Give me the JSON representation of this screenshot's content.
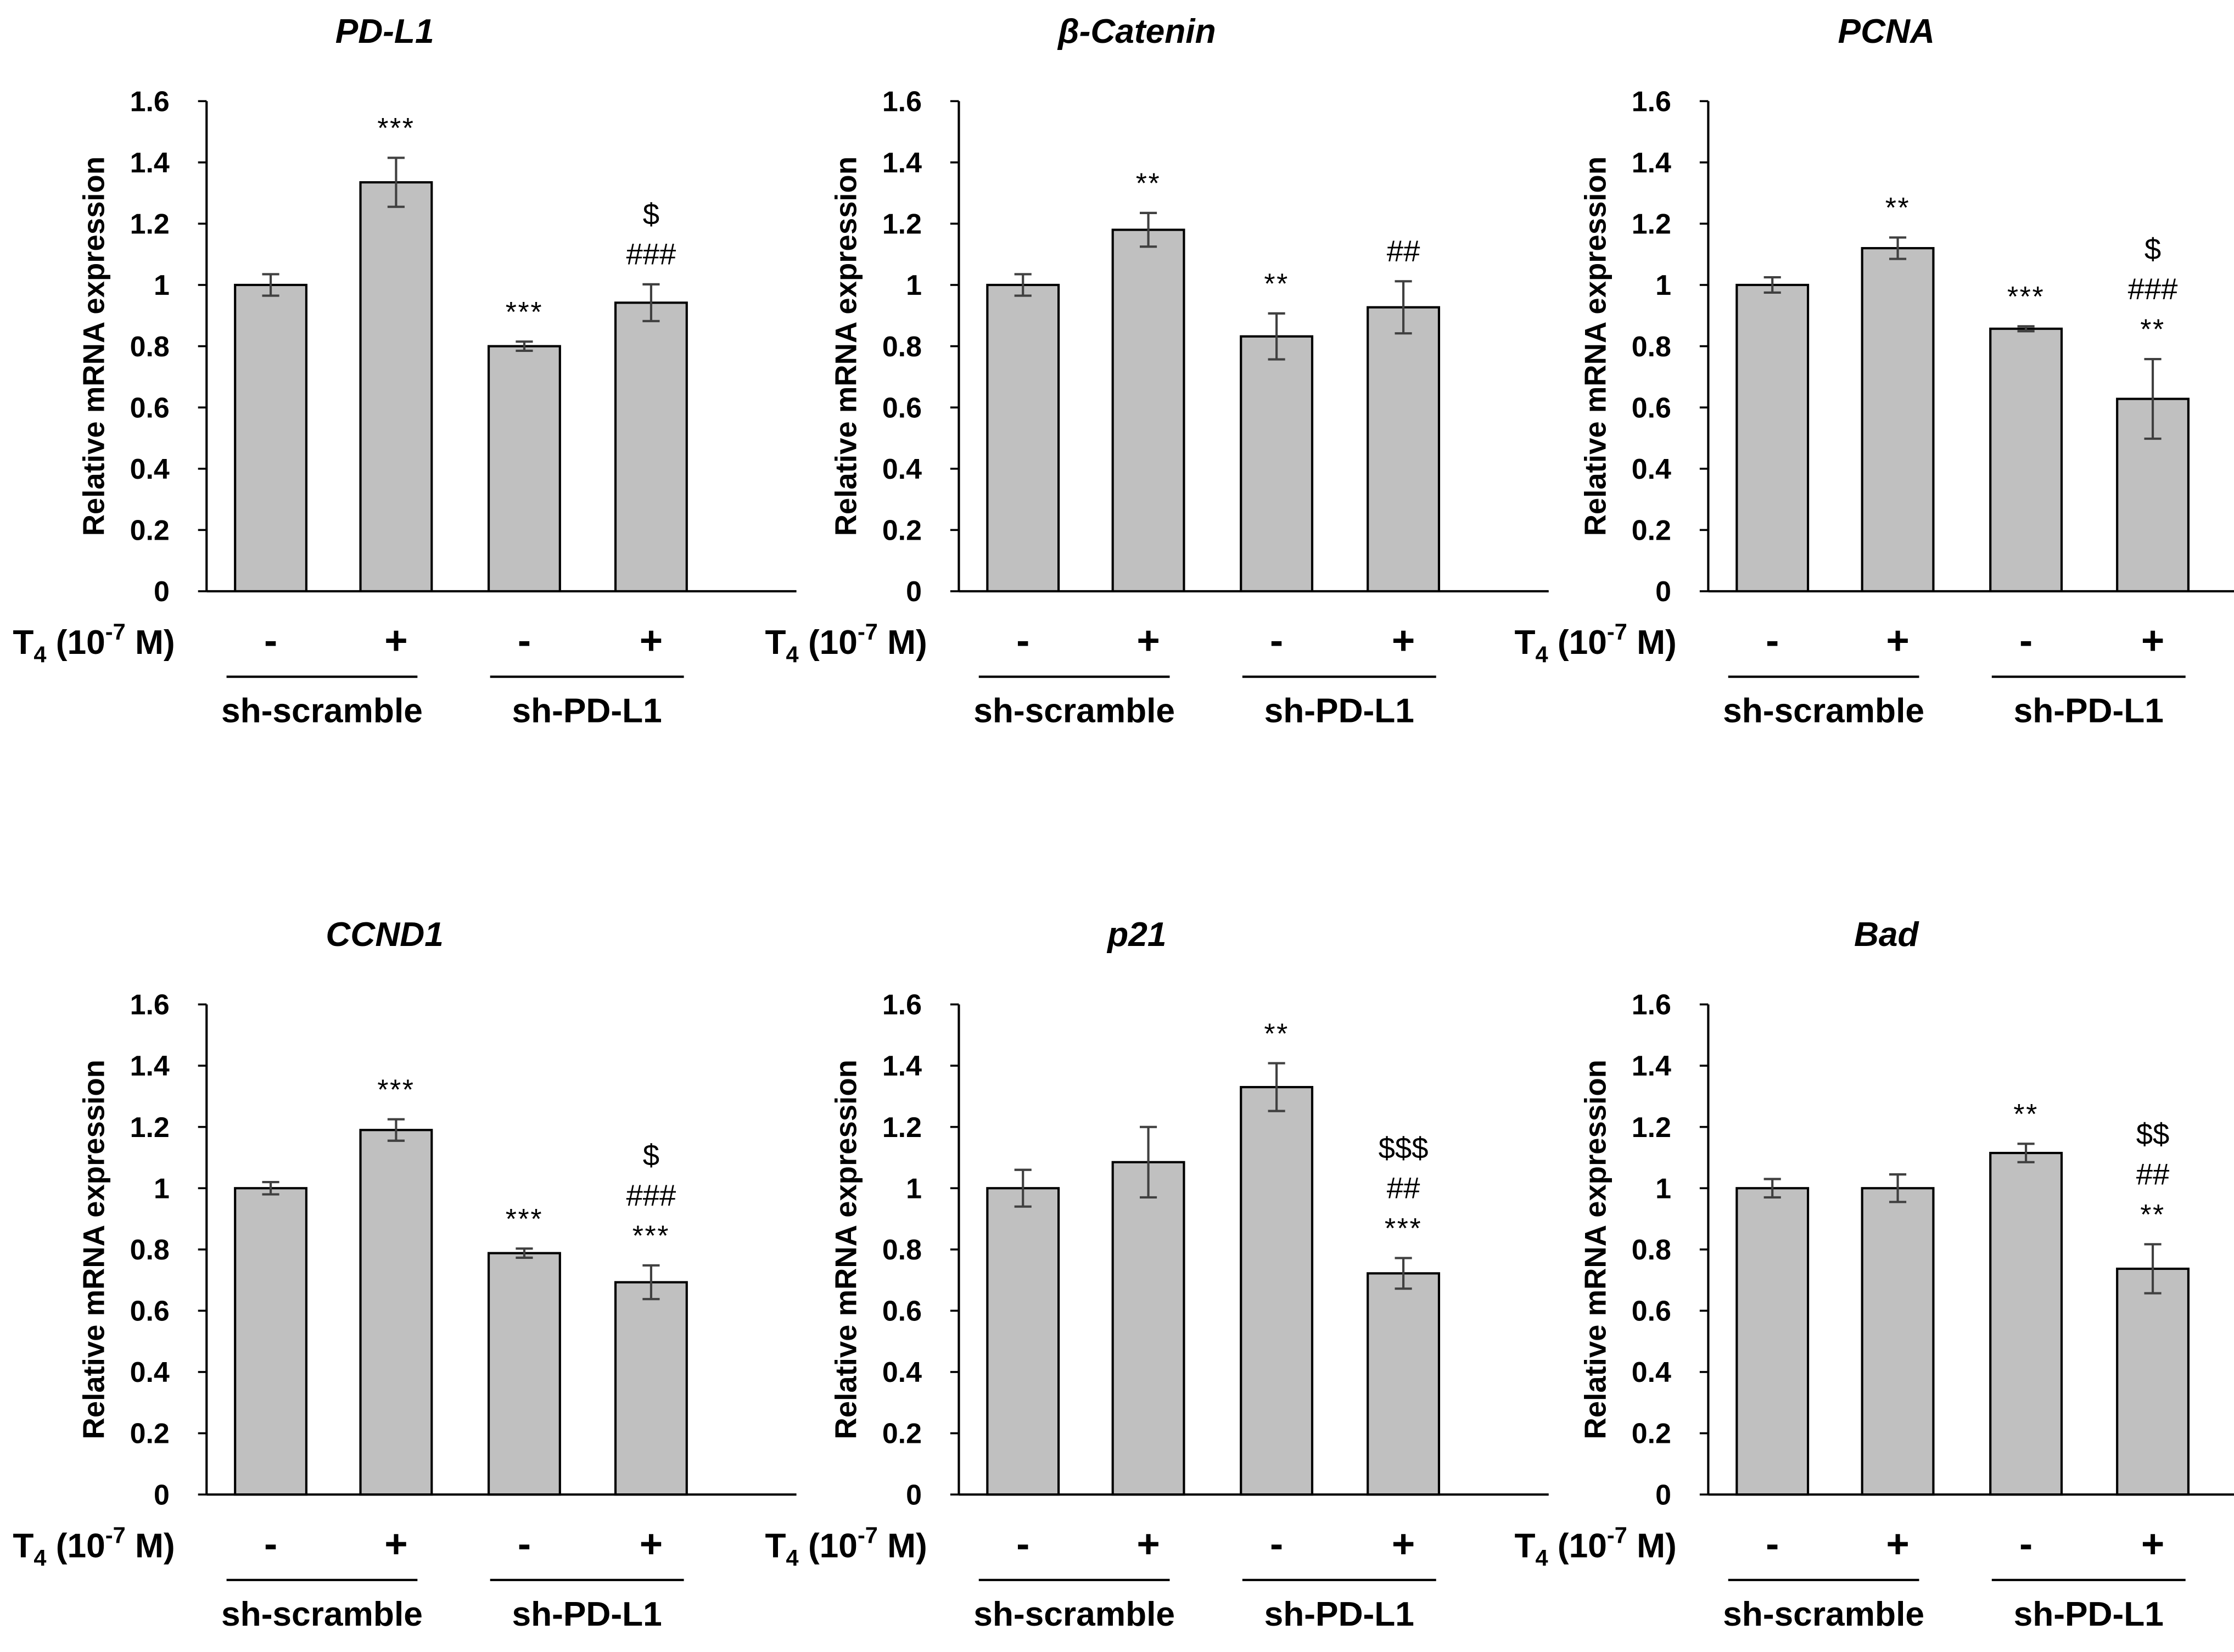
{
  "chart_data": [
    {
      "type": "bar",
      "title": "PD-L1",
      "ylabel": "Relative mRNA expression",
      "ylim": [
        0,
        1.6
      ],
      "yticks": [
        "0",
        "0.2",
        "0.4",
        "0.6",
        "0.8",
        "1",
        "1.2",
        "1.4",
        "1.6"
      ],
      "treatment_label": "T",
      "treatment_sub": "4",
      "treatment_rest": " (10",
      "treatment_sup": "-7",
      "treatment_unit": " M)",
      "signs": [
        "-",
        "+",
        "-",
        "+"
      ],
      "groups": [
        "sh-scramble",
        "sh-PD-L1"
      ],
      "values": [
        1.0,
        1.335,
        0.8,
        0.942
      ],
      "errors": [
        0.035,
        0.08,
        0.015,
        0.06
      ],
      "annotations": [
        [],
        [
          "***"
        ],
        [
          "***"
        ],
        [
          "###",
          "$"
        ]
      ]
    },
    {
      "type": "bar",
      "title": "β-Catenin",
      "ylabel": "Relative mRNA expression",
      "ylim": [
        0,
        1.6
      ],
      "yticks": [
        "0",
        "0.2",
        "0.4",
        "0.6",
        "0.8",
        "1",
        "1.2",
        "1.4",
        "1.6"
      ],
      "treatment_label": "T",
      "treatment_sub": "4",
      "treatment_rest": " (10",
      "treatment_sup": "-7",
      "treatment_unit": " M)",
      "signs": [
        "-",
        "+",
        "-",
        "+"
      ],
      "groups": [
        "sh-scramble",
        "sh-PD-L1"
      ],
      "values": [
        1.0,
        1.18,
        0.832,
        0.927
      ],
      "errors": [
        0.035,
        0.055,
        0.075,
        0.085
      ],
      "annotations": [
        [],
        [
          "**"
        ],
        [
          "**"
        ],
        [
          "##"
        ]
      ]
    },
    {
      "type": "bar",
      "title": "PCNA",
      "ylabel": "Relative mRNA expression",
      "ylim": [
        0,
        1.6
      ],
      "yticks": [
        "0",
        "0.2",
        "0.4",
        "0.6",
        "0.8",
        "1",
        "1.2",
        "1.4",
        "1.6"
      ],
      "treatment_label": "T",
      "treatment_sub": "4",
      "treatment_rest": " (10",
      "treatment_sup": "-7",
      "treatment_unit": " M)",
      "signs": [
        "-",
        "+",
        "-",
        "+"
      ],
      "groups": [
        "sh-scramble",
        "sh-PD-L1"
      ],
      "values": [
        1.0,
        1.12,
        0.857,
        0.628
      ],
      "errors": [
        0.025,
        0.035,
        0.008,
        0.13
      ],
      "annotations": [
        [],
        [
          "**"
        ],
        [
          "***"
        ],
        [
          "**",
          "###",
          "$"
        ]
      ]
    },
    {
      "type": "bar",
      "title": "CCND1",
      "ylabel": "Relative mRNA expression",
      "ylim": [
        0,
        1.6
      ],
      "yticks": [
        "0",
        "0.2",
        "0.4",
        "0.6",
        "0.8",
        "1",
        "1.2",
        "1.4",
        "1.6"
      ],
      "treatment_label": "T",
      "treatment_sub": "4",
      "treatment_rest": " (10",
      "treatment_sup": "-7",
      "treatment_unit": " M)",
      "signs": [
        "-",
        "+",
        "-",
        "+"
      ],
      "groups": [
        "sh-scramble",
        "sh-PD-L1"
      ],
      "values": [
        1.0,
        1.19,
        0.788,
        0.693
      ],
      "errors": [
        0.02,
        0.035,
        0.015,
        0.055
      ],
      "annotations": [
        [],
        [
          "***"
        ],
        [
          "***"
        ],
        [
          "***",
          "###",
          "$"
        ]
      ]
    },
    {
      "type": "bar",
      "title": "p21",
      "ylabel": "Relative mRNA expression",
      "ylim": [
        0,
        1.6
      ],
      "yticks": [
        "0",
        "0.2",
        "0.4",
        "0.6",
        "0.8",
        "1",
        "1.2",
        "1.4",
        "1.6"
      ],
      "treatment_label": "T",
      "treatment_sub": "4",
      "treatment_rest": " (10",
      "treatment_sup": "-7",
      "treatment_unit": " M)",
      "signs": [
        "-",
        "+",
        "-",
        "+"
      ],
      "groups": [
        "sh-scramble",
        "sh-PD-L1"
      ],
      "values": [
        1.0,
        1.085,
        1.33,
        0.722
      ],
      "errors": [
        0.06,
        0.115,
        0.078,
        0.05
      ],
      "annotations": [
        [],
        [],
        [
          "**"
        ],
        [
          "***",
          "##",
          "$$$"
        ]
      ]
    },
    {
      "type": "bar",
      "title": "Bad",
      "ylabel": "Relative mRNA expression",
      "ylim": [
        0,
        1.6
      ],
      "yticks": [
        "0",
        "0.2",
        "0.4",
        "0.6",
        "0.8",
        "1",
        "1.2",
        "1.4",
        "1.6"
      ],
      "treatment_label": "T",
      "treatment_sub": "4",
      "treatment_rest": " (10",
      "treatment_sup": "-7",
      "treatment_unit": " M)",
      "signs": [
        "-",
        "+",
        "-",
        "+"
      ],
      "groups": [
        "sh-scramble",
        "sh-PD-L1"
      ],
      "values": [
        1.0,
        1.0,
        1.115,
        0.737
      ],
      "errors": [
        0.03,
        0.045,
        0.03,
        0.08
      ],
      "annotations": [
        [],
        [],
        [
          "**"
        ],
        [
          "**",
          "##",
          "$$"
        ]
      ]
    }
  ]
}
